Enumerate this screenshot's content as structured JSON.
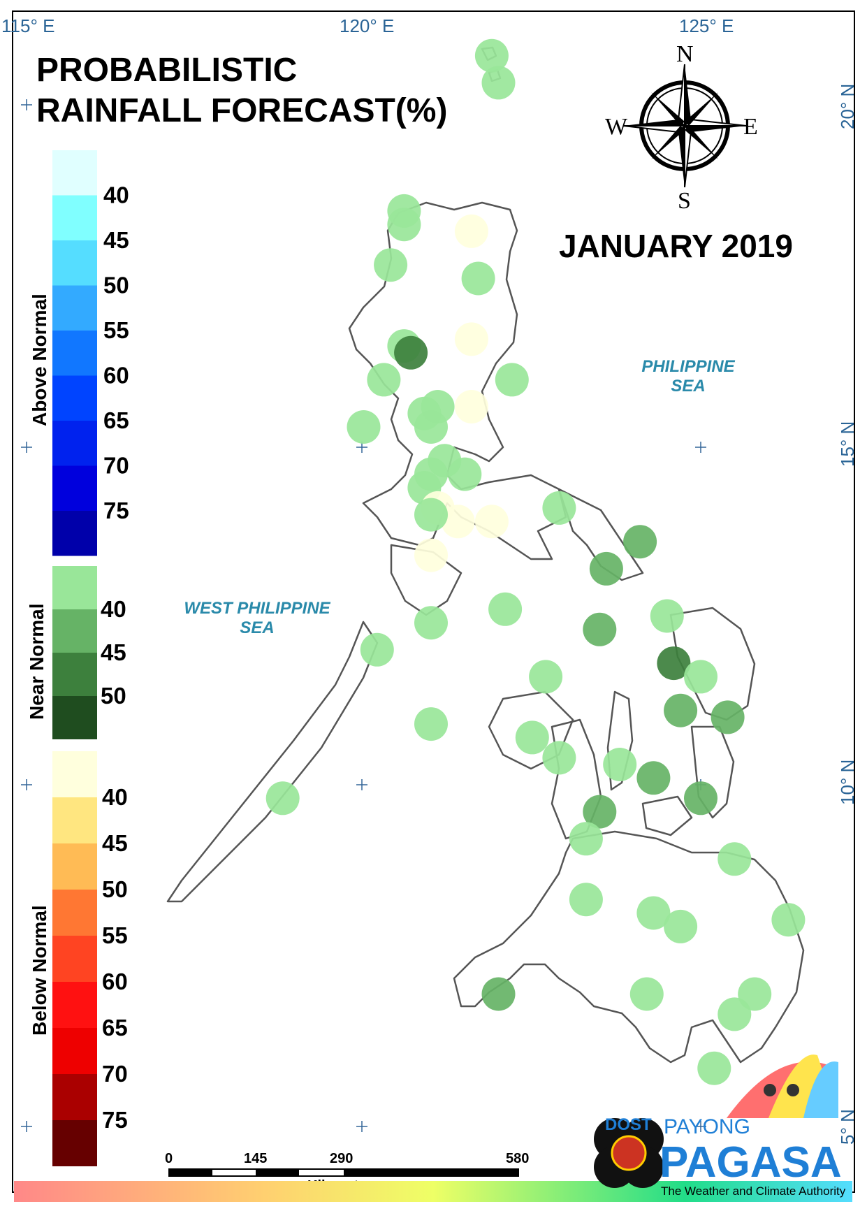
{
  "title_line1": "PROBABILISTIC",
  "title_line2": "RAINFALL FORECAST(%)",
  "period": "JANUARY 2019",
  "compass": {
    "n": "N",
    "s": "S",
    "e": "E",
    "w": "W"
  },
  "graticule": {
    "lon_labels": [
      "115° E",
      "120° E",
      "125° E"
    ],
    "lat_labels": [
      "20° N",
      "15° N",
      "10° N",
      "5° N"
    ]
  },
  "seas": {
    "philippine_sea": [
      "PHILIPPINE",
      "SEA"
    ],
    "west_philippine_sea": [
      "WEST PHILIPPINE",
      "SEA"
    ]
  },
  "legend": {
    "above": {
      "title": "Above Normal",
      "labels": [
        "40",
        "45",
        "50",
        "55",
        "60",
        "65",
        "70",
        "75"
      ],
      "colors": [
        "#e0ffff",
        "#80ffff",
        "#55ddff",
        "#33aaff",
        "#1177ff",
        "#0044ff",
        "#0022ee",
        "#0000dd",
        "#0000aa"
      ]
    },
    "near": {
      "title": "Near Normal",
      "labels": [
        "40",
        "45",
        "50"
      ],
      "colors": [
        "#99e699",
        "#66b366",
        "#3d803d",
        "#1f4d1f"
      ]
    },
    "below": {
      "title": "Below Normal",
      "labels": [
        "40",
        "45",
        "50",
        "55",
        "60",
        "65",
        "70",
        "75"
      ],
      "colors": [
        "#ffffdd",
        "#ffe680",
        "#ffbb55",
        "#ff7733",
        "#ff4422",
        "#ff1111",
        "#ee0000",
        "#aa0000",
        "#660000"
      ]
    }
  },
  "scalebar": {
    "labels": [
      "0",
      "145",
      "290",
      "580"
    ],
    "unit": "Kilometers"
  },
  "logo": {
    "dost": "DOST",
    "payong": "PAYONG",
    "pagasa": "PAGASA",
    "tagline": "The Weather and Climate Authority"
  },
  "stations": [
    {
      "lon": 121.9,
      "lat": 20.8,
      "cat": "near",
      "level": 1
    },
    {
      "lon": 122.0,
      "lat": 20.4,
      "cat": "near",
      "level": 1
    },
    {
      "lon": 120.6,
      "lat": 18.5,
      "cat": "near",
      "level": 1
    },
    {
      "lon": 120.6,
      "lat": 18.3,
      "cat": "near",
      "level": 1
    },
    {
      "lon": 120.4,
      "lat": 17.7,
      "cat": "near",
      "level": 1
    },
    {
      "lon": 121.6,
      "lat": 18.2,
      "cat": "below",
      "level": 1
    },
    {
      "lon": 121.7,
      "lat": 17.5,
      "cat": "near",
      "level": 1
    },
    {
      "lon": 121.6,
      "lat": 16.6,
      "cat": "below",
      "level": 1
    },
    {
      "lon": 120.6,
      "lat": 16.5,
      "cat": "near",
      "level": 1
    },
    {
      "lon": 120.7,
      "lat": 16.4,
      "cat": "near",
      "level": 3
    },
    {
      "lon": 120.3,
      "lat": 16.0,
      "cat": "near",
      "level": 1
    },
    {
      "lon": 122.2,
      "lat": 16.0,
      "cat": "near",
      "level": 1
    },
    {
      "lon": 121.6,
      "lat": 15.6,
      "cat": "below",
      "level": 1
    },
    {
      "lon": 121.1,
      "lat": 15.6,
      "cat": "near",
      "level": 1
    },
    {
      "lon": 120.9,
      "lat": 15.5,
      "cat": "near",
      "level": 1
    },
    {
      "lon": 121.0,
      "lat": 15.3,
      "cat": "near",
      "level": 1
    },
    {
      "lon": 120.0,
      "lat": 15.3,
      "cat": "near",
      "level": 1
    },
    {
      "lon": 121.2,
      "lat": 14.8,
      "cat": "near",
      "level": 1
    },
    {
      "lon": 121.0,
      "lat": 14.6,
      "cat": "near",
      "level": 1
    },
    {
      "lon": 121.5,
      "lat": 14.6,
      "cat": "near",
      "level": 1
    },
    {
      "lon": 120.9,
      "lat": 14.4,
      "cat": "near",
      "level": 1
    },
    {
      "lon": 121.1,
      "lat": 14.1,
      "cat": "below",
      "level": 1
    },
    {
      "lon": 121.4,
      "lat": 13.9,
      "cat": "below",
      "level": 1
    },
    {
      "lon": 121.9,
      "lat": 13.9,
      "cat": "below",
      "level": 1
    },
    {
      "lon": 121.0,
      "lat": 14.0,
      "cat": "near",
      "level": 1
    },
    {
      "lon": 122.9,
      "lat": 14.1,
      "cat": "near",
      "level": 1
    },
    {
      "lon": 124.1,
      "lat": 13.6,
      "cat": "near",
      "level": 2
    },
    {
      "lon": 123.6,
      "lat": 13.2,
      "cat": "near",
      "level": 2
    },
    {
      "lon": 121.0,
      "lat": 13.4,
      "cat": "below",
      "level": 1
    },
    {
      "lon": 121.0,
      "lat": 12.4,
      "cat": "near",
      "level": 1
    },
    {
      "lon": 122.1,
      "lat": 12.6,
      "cat": "near",
      "level": 1
    },
    {
      "lon": 123.5,
      "lat": 12.3,
      "cat": "near",
      "level": 2
    },
    {
      "lon": 124.5,
      "lat": 12.5,
      "cat": "near",
      "level": 1
    },
    {
      "lon": 120.2,
      "lat": 12.0,
      "cat": "near",
      "level": 1
    },
    {
      "lon": 124.6,
      "lat": 11.8,
      "cat": "near",
      "level": 3
    },
    {
      "lon": 122.7,
      "lat": 11.6,
      "cat": "near",
      "level": 1
    },
    {
      "lon": 125.0,
      "lat": 11.6,
      "cat": "near",
      "level": 1
    },
    {
      "lon": 124.7,
      "lat": 11.1,
      "cat": "near",
      "level": 2
    },
    {
      "lon": 125.4,
      "lat": 11.0,
      "cat": "near",
      "level": 2
    },
    {
      "lon": 121.0,
      "lat": 10.9,
      "cat": "near",
      "level": 1
    },
    {
      "lon": 122.5,
      "lat": 10.7,
      "cat": "near",
      "level": 1
    },
    {
      "lon": 122.9,
      "lat": 10.4,
      "cat": "near",
      "level": 1
    },
    {
      "lon": 123.8,
      "lat": 10.3,
      "cat": "near",
      "level": 1
    },
    {
      "lon": 124.3,
      "lat": 10.1,
      "cat": "near",
      "level": 2
    },
    {
      "lon": 118.8,
      "lat": 9.8,
      "cat": "near",
      "level": 1
    },
    {
      "lon": 123.5,
      "lat": 9.6,
      "cat": "near",
      "level": 2
    },
    {
      "lon": 125.0,
      "lat": 9.8,
      "cat": "near",
      "level": 2
    },
    {
      "lon": 123.3,
      "lat": 9.2,
      "cat": "near",
      "level": 1
    },
    {
      "lon": 125.5,
      "lat": 8.9,
      "cat": "near",
      "level": 1
    },
    {
      "lon": 123.3,
      "lat": 8.3,
      "cat": "near",
      "level": 1
    },
    {
      "lon": 124.3,
      "lat": 8.1,
      "cat": "near",
      "level": 1
    },
    {
      "lon": 124.7,
      "lat": 7.9,
      "cat": "near",
      "level": 1
    },
    {
      "lon": 126.3,
      "lat": 8.0,
      "cat": "near",
      "level": 1
    },
    {
      "lon": 124.2,
      "lat": 6.9,
      "cat": "near",
      "level": 1
    },
    {
      "lon": 125.8,
      "lat": 6.9,
      "cat": "near",
      "level": 1
    },
    {
      "lon": 125.5,
      "lat": 6.6,
      "cat": "near",
      "level": 1
    },
    {
      "lon": 122.0,
      "lat": 6.9,
      "cat": "near",
      "level": 2
    },
    {
      "lon": 125.2,
      "lat": 5.8,
      "cat": "near",
      "level": 1
    }
  ]
}
